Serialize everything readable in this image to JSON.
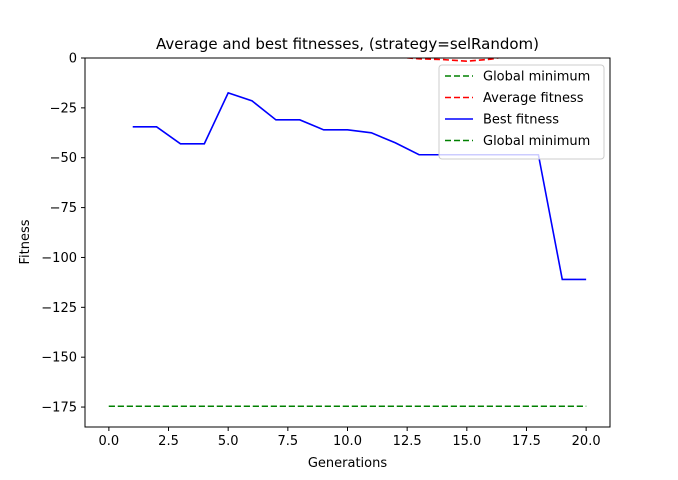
{
  "chart_data": {
    "type": "line",
    "title": "Average and best fitnesses, (strategy=selRandom)",
    "xlabel": "Generations",
    "ylabel": "Fitness",
    "xlim": [
      -1,
      21
    ],
    "ylim": [
      -185,
      0
    ],
    "xticks": [
      0.0,
      2.5,
      5.0,
      7.5,
      10.0,
      12.5,
      15.0,
      17.5,
      20.0
    ],
    "xtick_labels": [
      "0.0",
      "2.5",
      "5.0",
      "7.5",
      "10.0",
      "12.5",
      "15.0",
      "17.5",
      "20.0"
    ],
    "yticks": [
      0,
      -25,
      -50,
      -75,
      -100,
      -125,
      -150,
      -175
    ],
    "ytick_labels": [
      "0",
      "−25",
      "−50",
      "−75",
      "−100",
      "−125",
      "−150",
      "−175"
    ],
    "grid": false,
    "legend_position": "top-right",
    "series": [
      {
        "name": "Global minimum",
        "color": "#008000",
        "style": "dashed",
        "x": [
          0,
          20
        ],
        "y": [
          -174.6,
          -174.6
        ]
      },
      {
        "name": "Average fitness",
        "color": "#ff0000",
        "style": "dashed",
        "x": [
          11,
          12,
          13,
          14,
          15,
          16,
          17
        ],
        "y": [
          2.5,
          0.6,
          -0.4,
          -0.8,
          -1.6,
          -0.6,
          1.5
        ]
      },
      {
        "name": "Best fitness",
        "color": "#0000ff",
        "style": "solid",
        "x": [
          1,
          2,
          3,
          4,
          5,
          6,
          7,
          8,
          9,
          10,
          11,
          12,
          13,
          14,
          15,
          16,
          17,
          18,
          19,
          20
        ],
        "y": [
          -34.5,
          -34.5,
          -43,
          -43,
          -17.5,
          -21.5,
          -31,
          -31,
          -36,
          -36,
          -37.5,
          -42.5,
          -48.5,
          -48.5,
          -48.5,
          -48.5,
          -48.5,
          -48.5,
          -111,
          -111
        ]
      },
      {
        "name": "Global minimum",
        "color": "#008000",
        "style": "dashed",
        "x": [
          0,
          20
        ],
        "y": [
          -174.6,
          -174.6
        ]
      }
    ]
  }
}
